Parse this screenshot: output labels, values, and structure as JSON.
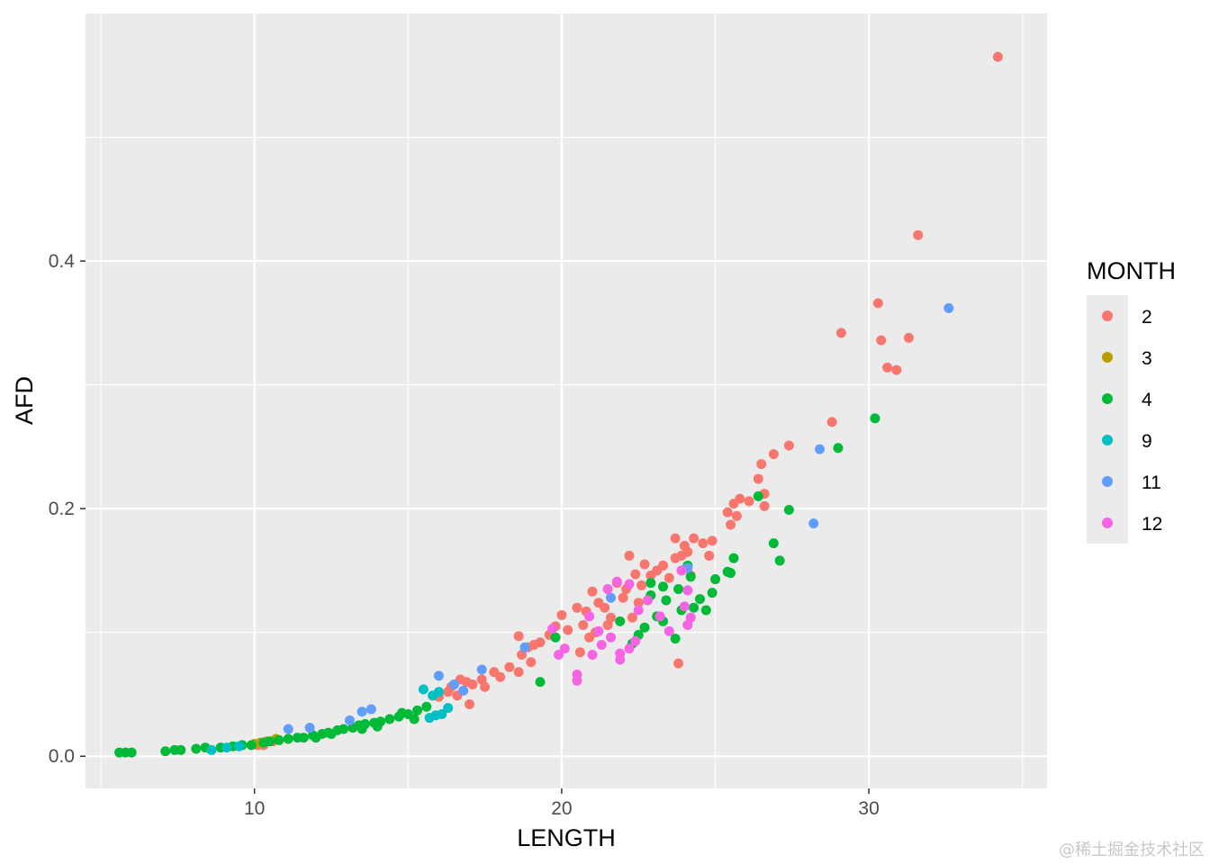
{
  "watermark": "@稀土掘金技术社区",
  "chart_data": {
    "type": "scatter",
    "xlabel": "LENGTH",
    "ylabel": "AFD",
    "xlim": [
      4.5,
      35.8
    ],
    "ylim": [
      -0.026,
      0.6
    ],
    "xticks": [
      10,
      20,
      30
    ],
    "xtick_labels": [
      "10",
      "20",
      "30"
    ],
    "yticks": [
      0.0,
      0.2,
      0.4
    ],
    "ytick_labels": [
      "0.0",
      "0.2",
      "0.4"
    ],
    "grid": true,
    "legend": {
      "title": "MONTH",
      "position": "right"
    },
    "series": [
      {
        "name": "2",
        "color": "#F8766D",
        "points": [
          [
            34.2,
            0.565
          ],
          [
            31.6,
            0.421
          ],
          [
            30.3,
            0.366
          ],
          [
            29.1,
            0.342
          ],
          [
            30.4,
            0.336
          ],
          [
            31.3,
            0.338
          ],
          [
            30.6,
            0.314
          ],
          [
            30.9,
            0.312
          ],
          [
            28.8,
            0.27
          ],
          [
            27.4,
            0.251
          ],
          [
            26.9,
            0.244
          ],
          [
            26.5,
            0.236
          ],
          [
            26.4,
            0.224
          ],
          [
            26.6,
            0.212
          ],
          [
            26.1,
            0.206
          ],
          [
            25.8,
            0.208
          ],
          [
            26.6,
            0.202
          ],
          [
            25.6,
            0.204
          ],
          [
            25.4,
            0.197
          ],
          [
            25.7,
            0.194
          ],
          [
            25.5,
            0.187
          ],
          [
            24.6,
            0.172
          ],
          [
            24.9,
            0.174
          ],
          [
            24.3,
            0.176
          ],
          [
            23.7,
            0.176
          ],
          [
            24.0,
            0.17
          ],
          [
            24.1,
            0.165
          ],
          [
            23.9,
            0.162
          ],
          [
            24.8,
            0.162
          ],
          [
            23.7,
            0.16
          ],
          [
            23.3,
            0.154
          ],
          [
            22.2,
            0.162
          ],
          [
            22.7,
            0.155
          ],
          [
            21.8,
            0.14
          ],
          [
            22.4,
            0.147
          ],
          [
            22.9,
            0.146
          ],
          [
            23.1,
            0.15
          ],
          [
            23.5,
            0.144
          ],
          [
            24.2,
            0.146
          ],
          [
            22.6,
            0.138
          ],
          [
            22.1,
            0.135
          ],
          [
            22.0,
            0.128
          ],
          [
            22.5,
            0.124
          ],
          [
            21.4,
            0.12
          ],
          [
            21.2,
            0.124
          ],
          [
            21.0,
            0.133
          ],
          [
            20.5,
            0.12
          ],
          [
            20.8,
            0.117
          ],
          [
            21.6,
            0.112
          ],
          [
            22.3,
            0.112
          ],
          [
            21.5,
            0.106
          ],
          [
            20.7,
            0.106
          ],
          [
            20.0,
            0.114
          ],
          [
            19.8,
            0.105
          ],
          [
            20.2,
            0.102
          ],
          [
            19.6,
            0.098
          ],
          [
            19.3,
            0.092
          ],
          [
            19.1,
            0.09
          ],
          [
            18.9,
            0.088
          ],
          [
            18.6,
            0.097
          ],
          [
            18.7,
            0.082
          ],
          [
            19.0,
            0.076
          ],
          [
            18.3,
            0.072
          ],
          [
            18.6,
            0.068
          ],
          [
            18.0,
            0.064
          ],
          [
            17.8,
            0.068
          ],
          [
            17.4,
            0.062
          ],
          [
            17.1,
            0.058
          ],
          [
            17.5,
            0.056
          ],
          [
            16.9,
            0.06
          ],
          [
            16.7,
            0.062
          ],
          [
            16.4,
            0.056
          ],
          [
            16.3,
            0.052
          ],
          [
            16.6,
            0.049
          ],
          [
            16.0,
            0.048
          ],
          [
            17.0,
            0.042
          ],
          [
            20.6,
            0.084
          ],
          [
            21.1,
            0.1
          ],
          [
            20.9,
            0.096
          ],
          [
            23.8,
            0.075
          ],
          [
            10.3,
            0.009
          ],
          [
            10.6,
            0.012
          ],
          [
            10.1,
            0.009
          ]
        ]
      },
      {
        "name": "3",
        "color": "#B79F00",
        "points": [
          [
            10.0,
            0.01
          ],
          [
            10.2,
            0.011
          ],
          [
            10.4,
            0.012
          ],
          [
            10.7,
            0.014
          ]
        ]
      },
      {
        "name": "4",
        "color": "#00BA38",
        "points": [
          [
            5.6,
            0.003
          ],
          [
            5.8,
            0.003
          ],
          [
            6.0,
            0.003
          ],
          [
            7.1,
            0.004
          ],
          [
            7.4,
            0.005
          ],
          [
            7.6,
            0.005
          ],
          [
            8.1,
            0.006
          ],
          [
            8.4,
            0.007
          ],
          [
            8.9,
            0.007
          ],
          [
            9.3,
            0.008
          ],
          [
            9.6,
            0.009
          ],
          [
            9.9,
            0.009
          ],
          [
            10.3,
            0.011
          ],
          [
            10.5,
            0.012
          ],
          [
            10.8,
            0.013
          ],
          [
            11.1,
            0.014
          ],
          [
            11.4,
            0.015
          ],
          [
            11.6,
            0.015
          ],
          [
            11.9,
            0.017
          ],
          [
            12.2,
            0.018
          ],
          [
            12.4,
            0.019
          ],
          [
            12.7,
            0.021
          ],
          [
            12.9,
            0.022
          ],
          [
            13.2,
            0.023
          ],
          [
            13.4,
            0.025
          ],
          [
            13.6,
            0.026
          ],
          [
            13.9,
            0.027
          ],
          [
            14.1,
            0.028
          ],
          [
            14.4,
            0.03
          ],
          [
            14.7,
            0.032
          ],
          [
            15.0,
            0.034
          ],
          [
            15.3,
            0.037
          ],
          [
            15.2,
            0.03
          ],
          [
            15.6,
            0.04
          ],
          [
            12.0,
            0.015
          ],
          [
            12.5,
            0.018
          ],
          [
            13.5,
            0.022
          ],
          [
            14.0,
            0.024
          ],
          [
            14.8,
            0.035
          ],
          [
            19.3,
            0.06
          ],
          [
            19.8,
            0.096
          ],
          [
            21.9,
            0.109
          ],
          [
            22.5,
            0.098
          ],
          [
            22.9,
            0.13
          ],
          [
            23.1,
            0.113
          ],
          [
            23.3,
            0.109
          ],
          [
            23.7,
            0.095
          ],
          [
            23.3,
            0.137
          ],
          [
            24.1,
            0.154
          ],
          [
            24.2,
            0.145
          ],
          [
            24.3,
            0.12
          ],
          [
            24.5,
            0.127
          ],
          [
            24.9,
            0.132
          ],
          [
            25.0,
            0.143
          ],
          [
            25.4,
            0.149
          ],
          [
            25.5,
            0.148
          ],
          [
            25.6,
            0.16
          ],
          [
            26.4,
            0.21
          ],
          [
            27.4,
            0.199
          ],
          [
            26.9,
            0.172
          ],
          [
            27.1,
            0.158
          ],
          [
            29.0,
            0.249
          ],
          [
            30.2,
            0.273
          ],
          [
            22.9,
            0.14
          ],
          [
            23.8,
            0.135
          ],
          [
            22.3,
            0.091
          ],
          [
            22.7,
            0.104
          ],
          [
            23.4,
            0.126
          ],
          [
            23.9,
            0.118
          ],
          [
            24.7,
            0.118
          ]
        ]
      },
      {
        "name": "9",
        "color": "#00BFC4",
        "points": [
          [
            8.6,
            0.005
          ],
          [
            9.1,
            0.007
          ],
          [
            9.5,
            0.008
          ],
          [
            15.5,
            0.054
          ],
          [
            15.7,
            0.031
          ],
          [
            15.9,
            0.033
          ],
          [
            16.1,
            0.034
          ],
          [
            16.3,
            0.039
          ],
          [
            16.0,
            0.052
          ],
          [
            15.8,
            0.049
          ]
        ]
      },
      {
        "name": "11",
        "color": "#619CFF",
        "points": [
          [
            11.1,
            0.022
          ],
          [
            11.8,
            0.023
          ],
          [
            13.1,
            0.029
          ],
          [
            13.5,
            0.036
          ],
          [
            13.8,
            0.038
          ],
          [
            16.0,
            0.065
          ],
          [
            16.5,
            0.058
          ],
          [
            16.8,
            0.053
          ],
          [
            17.4,
            0.07
          ],
          [
            18.8,
            0.088
          ],
          [
            21.6,
            0.128
          ],
          [
            24.1,
            0.152
          ],
          [
            28.2,
            0.188
          ],
          [
            28.4,
            0.248
          ],
          [
            32.6,
            0.362
          ]
        ]
      },
      {
        "name": "12",
        "color": "#F564E3",
        "points": [
          [
            19.7,
            0.103
          ],
          [
            19.9,
            0.082
          ],
          [
            20.1,
            0.087
          ],
          [
            20.5,
            0.066
          ],
          [
            20.5,
            0.061
          ],
          [
            21.0,
            0.082
          ],
          [
            21.3,
            0.09
          ],
          [
            21.6,
            0.096
          ],
          [
            21.9,
            0.083
          ],
          [
            21.9,
            0.078
          ],
          [
            22.2,
            0.087
          ],
          [
            22.4,
            0.093
          ],
          [
            21.8,
            0.141
          ],
          [
            21.5,
            0.135
          ],
          [
            22.2,
            0.139
          ],
          [
            22.5,
            0.118
          ],
          [
            22.8,
            0.126
          ],
          [
            23.2,
            0.113
          ],
          [
            23.5,
            0.101
          ],
          [
            23.9,
            0.15
          ],
          [
            24.0,
            0.121
          ],
          [
            24.1,
            0.134
          ],
          [
            24.1,
            0.106
          ],
          [
            24.2,
            0.112
          ],
          [
            21.2,
            0.101
          ],
          [
            20.9,
            0.113
          ]
        ]
      }
    ]
  }
}
